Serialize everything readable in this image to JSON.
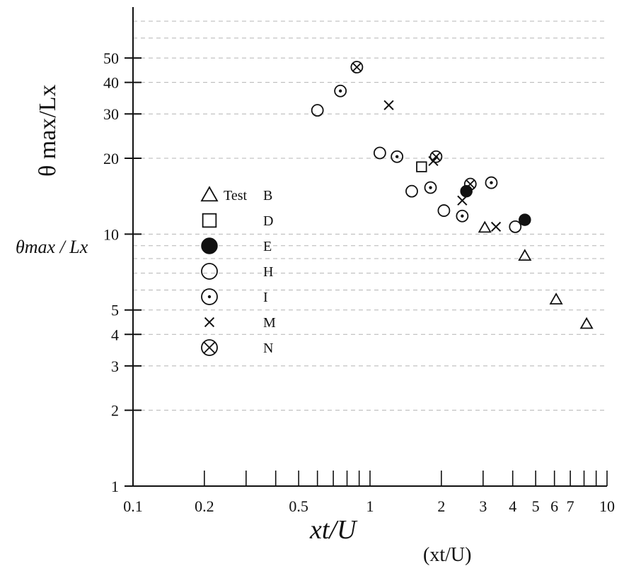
{
  "chart_data": {
    "type": "scatter",
    "x_scale": "log",
    "y_scale": "log",
    "xlim": [
      0.1,
      10
    ],
    "ylim": [
      1,
      70
    ],
    "grid": true,
    "legend_placement": "center-left",
    "ylabel": "θ max/Lx",
    "ylabel_handwritten": "θmax / Lx",
    "xlabel": "(xt/U)",
    "xlabel_handwritten": "xt/U",
    "x_ticks": [
      {
        "value": 0.1,
        "label": "0.1"
      },
      {
        "value": 0.2,
        "label": "0.2"
      },
      {
        "value": 0.5,
        "label": "0.5"
      },
      {
        "value": 1,
        "label": "1"
      },
      {
        "value": 2,
        "label": "2"
      },
      {
        "value": 3,
        "label": "3"
      },
      {
        "value": 4,
        "label": "4"
      },
      {
        "value": 5,
        "label": "5"
      },
      {
        "value": 6,
        "label": "6"
      },
      {
        "value": 7,
        "label": "7"
      },
      {
        "value": 10,
        "label": "10"
      }
    ],
    "y_ticks": [
      {
        "value": 1,
        "label": "1"
      },
      {
        "value": 2,
        "label": "2"
      },
      {
        "value": 3,
        "label": "3"
      },
      {
        "value": 4,
        "label": "4"
      },
      {
        "value": 5,
        "label": "5"
      },
      {
        "value": 10,
        "label": "10"
      },
      {
        "value": 20,
        "label": "20"
      },
      {
        "value": 30,
        "label": "30"
      },
      {
        "value": 40,
        "label": "40"
      },
      {
        "value": 50,
        "label": "50"
      }
    ],
    "legend_title": "Test",
    "series": [
      {
        "name": "B",
        "marker": "triangle",
        "points": [
          [
            3.05,
            10.6
          ],
          [
            4.5,
            8.2
          ],
          [
            6.1,
            5.5
          ],
          [
            8.2,
            4.4
          ]
        ]
      },
      {
        "name": "D",
        "marker": "square",
        "points": [
          [
            1.65,
            18.5
          ]
        ]
      },
      {
        "name": "E",
        "marker": "filled-circle",
        "points": [
          [
            2.55,
            14.8
          ],
          [
            4.5,
            11.4
          ]
        ]
      },
      {
        "name": "H",
        "marker": "circle",
        "points": [
          [
            0.6,
            31
          ],
          [
            1.1,
            21
          ],
          [
            1.5,
            14.8
          ],
          [
            2.05,
            12.4
          ],
          [
            4.1,
            10.7
          ]
        ]
      },
      {
        "name": "I",
        "marker": "dot-circle",
        "points": [
          [
            0.75,
            37
          ],
          [
            1.3,
            20.3
          ],
          [
            1.8,
            15.3
          ],
          [
            2.45,
            11.8
          ],
          [
            3.25,
            16
          ]
        ]
      },
      {
        "name": "M",
        "marker": "x",
        "points": [
          [
            1.2,
            32.5
          ],
          [
            1.85,
            19.5
          ],
          [
            2.45,
            13.6
          ],
          [
            3.4,
            10.7
          ]
        ]
      },
      {
        "name": "N",
        "marker": "circle-x",
        "points": [
          [
            0.88,
            46
          ],
          [
            1.9,
            20.3
          ],
          [
            2.65,
            15.8
          ]
        ]
      }
    ]
  }
}
